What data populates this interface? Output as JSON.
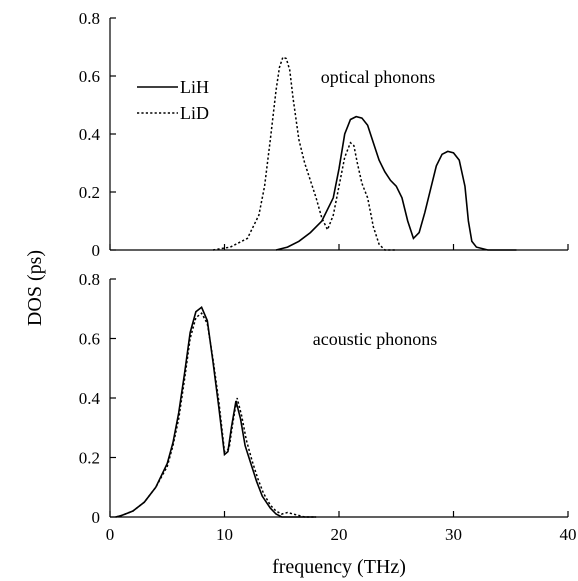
{
  "chart_data": [
    {
      "type": "line",
      "panel": "top",
      "annotation": "optical phonons",
      "ylim": [
        0,
        0.8
      ],
      "xlim": [
        0,
        40
      ],
      "yticks": [
        "0",
        "0.2",
        "0.4",
        "0.6",
        "0.8"
      ],
      "legend": {
        "position": "top-left",
        "entries": [
          "LiH",
          "LiD"
        ]
      },
      "series": [
        {
          "name": "LiH",
          "style": "solid",
          "x": [
            14.5,
            15.5,
            16.5,
            17.5,
            18.5,
            19.5,
            20.0,
            20.5,
            21.0,
            21.5,
            22.0,
            22.5,
            23.0,
            23.5,
            24.0,
            24.5,
            25.0,
            25.5,
            26.0,
            26.5,
            27.0,
            27.5,
            28.0,
            28.5,
            29.0,
            29.5,
            30.0,
            30.5,
            31.0,
            31.3,
            31.6,
            32.0,
            33.0,
            34.0,
            35.5
          ],
          "y": [
            0.0,
            0.01,
            0.03,
            0.06,
            0.1,
            0.18,
            0.28,
            0.4,
            0.45,
            0.46,
            0.455,
            0.43,
            0.37,
            0.31,
            0.27,
            0.24,
            0.22,
            0.18,
            0.1,
            0.04,
            0.06,
            0.13,
            0.21,
            0.29,
            0.33,
            0.34,
            0.335,
            0.31,
            0.22,
            0.1,
            0.03,
            0.01,
            0.0,
            0.0,
            0.0
          ]
        },
        {
          "name": "LiD",
          "style": "dotted",
          "x": [
            9.0,
            10.5,
            12.0,
            13.0,
            13.5,
            14.0,
            14.5,
            14.8,
            15.1,
            15.4,
            15.7,
            16.0,
            16.5,
            17.0,
            17.5,
            18.0,
            18.5,
            19.0,
            19.5,
            20.0,
            20.5,
            21.0,
            21.3,
            21.6,
            22.0,
            22.5,
            23.0,
            23.5,
            24.0,
            25.0
          ],
          "y": [
            0.0,
            0.01,
            0.04,
            0.12,
            0.22,
            0.38,
            0.55,
            0.63,
            0.665,
            0.66,
            0.62,
            0.52,
            0.38,
            0.3,
            0.24,
            0.18,
            0.11,
            0.07,
            0.12,
            0.22,
            0.32,
            0.37,
            0.36,
            0.3,
            0.23,
            0.18,
            0.08,
            0.02,
            0.0,
            0.0
          ]
        }
      ]
    },
    {
      "type": "line",
      "panel": "bottom",
      "annotation": "acoustic phonons",
      "ylim": [
        0,
        0.8
      ],
      "xlim": [
        0,
        40
      ],
      "yticks": [
        "0",
        "0.2",
        "0.4",
        "0.6",
        "0.8"
      ],
      "xticks": [
        "0",
        "10",
        "20",
        "30",
        "40"
      ],
      "xlabel": "frequency (THz)",
      "ylabel": "DOS (ps)",
      "series": [
        {
          "name": "LiH",
          "style": "solid",
          "x": [
            0.5,
            1.0,
            2.0,
            3.0,
            4.0,
            5.0,
            5.5,
            6.0,
            6.5,
            7.0,
            7.5,
            8.0,
            8.5,
            9.0,
            9.5,
            10.0,
            10.3,
            10.6,
            11.0,
            11.4,
            11.8,
            12.3,
            12.8,
            13.3,
            14.0,
            14.5,
            15.0,
            16.0,
            17.0,
            18.0
          ],
          "y": [
            0.0,
            0.005,
            0.02,
            0.05,
            0.1,
            0.18,
            0.25,
            0.35,
            0.48,
            0.62,
            0.69,
            0.705,
            0.66,
            0.52,
            0.37,
            0.21,
            0.22,
            0.3,
            0.39,
            0.33,
            0.24,
            0.18,
            0.12,
            0.07,
            0.03,
            0.01,
            0.0,
            0.0,
            0.0,
            0.0
          ]
        },
        {
          "name": "LiD",
          "style": "dotted",
          "x": [
            0.5,
            1.0,
            2.0,
            3.0,
            4.0,
            5.0,
            5.5,
            6.0,
            6.5,
            7.0,
            7.5,
            8.0,
            8.5,
            9.0,
            9.5,
            10.0,
            10.4,
            10.7,
            11.1,
            11.5,
            11.9,
            12.4,
            12.9,
            13.4,
            14.0,
            14.5,
            15.0,
            15.5,
            16.0,
            17.0,
            18.0
          ],
          "y": [
            0.0,
            0.005,
            0.02,
            0.05,
            0.1,
            0.17,
            0.24,
            0.33,
            0.46,
            0.6,
            0.67,
            0.685,
            0.65,
            0.53,
            0.39,
            0.22,
            0.23,
            0.31,
            0.4,
            0.34,
            0.26,
            0.19,
            0.13,
            0.08,
            0.04,
            0.02,
            0.01,
            0.015,
            0.01,
            0.0,
            0.0
          ]
        }
      ]
    }
  ]
}
